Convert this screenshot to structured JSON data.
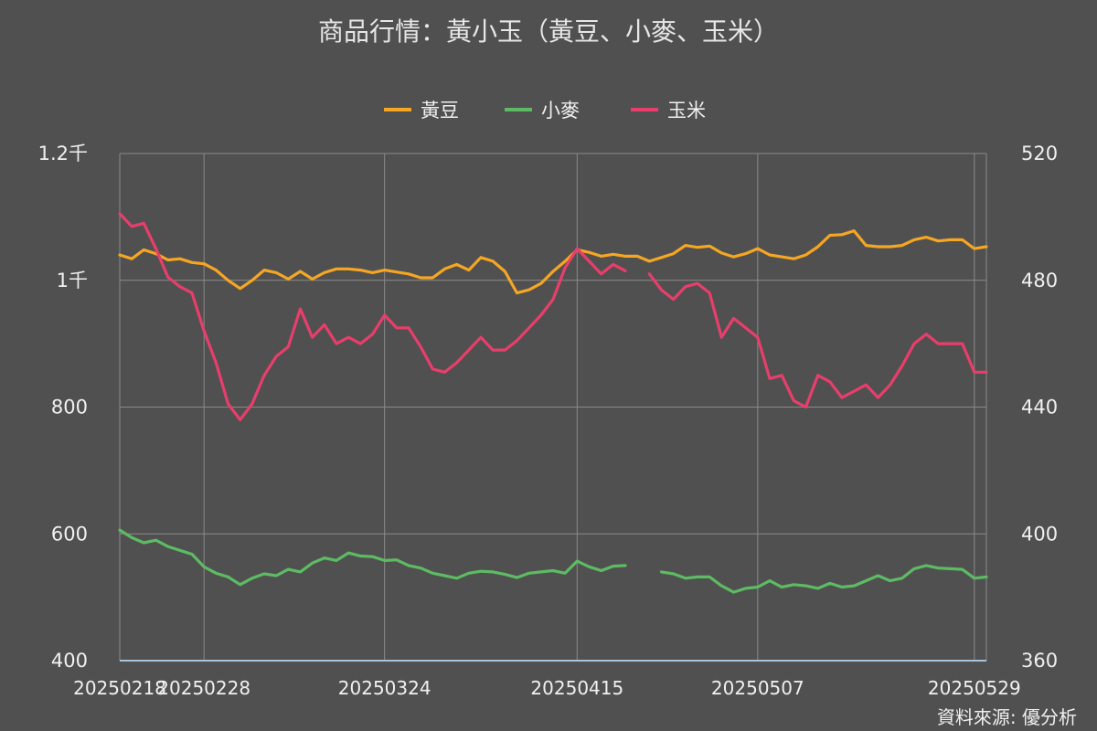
{
  "chart_data": {
    "type": "line",
    "title": "商品行情：黃小玉（黃豆、小麥、玉米）",
    "source": "資料來源: 優分析",
    "colors": {
      "background": "#505050",
      "grid": "#8a8a8a",
      "axis": "#a9c2dc"
    },
    "x_tick_labels": [
      "20250218",
      "20250228",
      "20250324",
      "20250415",
      "20250507",
      "20250529"
    ],
    "left_axis": {
      "ylim": [
        400,
        1200
      ],
      "tick_labels": [
        "400",
        "600",
        "800",
        "1千",
        "1.2千"
      ],
      "tick_values": [
        400,
        600,
        800,
        1000,
        1200
      ]
    },
    "right_axis": {
      "ylim": [
        360,
        520
      ],
      "tick_labels": [
        "360",
        "400",
        "440",
        "480",
        "520"
      ],
      "tick_values": [
        360,
        400,
        440,
        480,
        520
      ]
    },
    "legend_position": "top-center",
    "series": [
      {
        "name": "黃豆",
        "axis": "left",
        "color": "#f5a623",
        "values": [
          1040,
          1034,
          1048,
          1042,
          1032,
          1034,
          1028,
          1026,
          1016,
          1000,
          987,
          1000,
          1016,
          1012,
          1002,
          1014,
          1002,
          1012,
          1018,
          1018,
          1016,
          1012,
          1016,
          1013,
          1010,
          1004,
          1004,
          1018,
          1025,
          1016,
          1036,
          1030,
          1014,
          980,
          985,
          995,
          1014,
          1030,
          1048,
          1044,
          1038,
          1041,
          1038,
          1038,
          1030,
          1036,
          1042,
          1055,
          1052,
          1054,
          1043,
          1037,
          1042,
          1050,
          1040,
          1037,
          1034,
          1040,
          1053,
          1071,
          1072,
          1078,
          1055,
          1053,
          1053,
          1055,
          1064,
          1068,
          1062,
          1064,
          1064,
          1050,
          1053
        ]
      },
      {
        "name": "小麥",
        "axis": "left",
        "color": "#5dbb63",
        "values": [
          606,
          594,
          586,
          590,
          580,
          574,
          568,
          548,
          538,
          532,
          520,
          530,
          537,
          534,
          544,
          540,
          554,
          562,
          558,
          570,
          565,
          564,
          558,
          559,
          550,
          546,
          538,
          534,
          530,
          538,
          541,
          540,
          536,
          531,
          538,
          540,
          542,
          538,
          557,
          548,
          542,
          549,
          550,
          null,
          null,
          540,
          537,
          530,
          532,
          532,
          518,
          508,
          514,
          516,
          526,
          516,
          520,
          518,
          514,
          522,
          516,
          518,
          526,
          534,
          526,
          530,
          545,
          550,
          546,
          545,
          544,
          530,
          532
        ]
      },
      {
        "name": "玉米",
        "axis": "right",
        "color": "#e83e6c",
        "values": [
          501,
          497,
          498,
          490,
          481,
          478,
          476,
          464,
          454,
          441,
          436,
          441,
          450,
          456,
          459,
          471,
          462,
          466,
          460,
          462,
          460,
          463,
          469,
          465,
          465,
          459,
          452,
          451,
          454,
          458,
          462,
          458,
          458,
          461,
          465,
          469,
          474,
          484,
          490,
          486,
          482,
          485,
          483,
          null,
          482,
          477,
          474,
          478,
          479,
          476,
          462,
          468,
          465,
          462,
          449,
          450,
          442,
          440,
          450,
          448,
          443,
          445,
          447,
          443,
          447,
          453,
          460,
          463,
          460,
          460,
          460,
          451,
          451
        ]
      }
    ]
  }
}
